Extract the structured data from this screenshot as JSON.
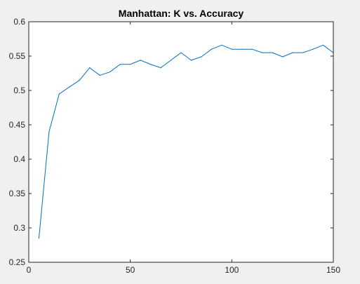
{
  "colors": {
    "figure_background": "#f0f0f0",
    "axes_background": "#ffffff",
    "axis_color": "#262626",
    "line_color": "#0072bd"
  },
  "chart_data": {
    "type": "line",
    "title": "Manhattan: K vs. Accuracy",
    "xlabel": "",
    "ylabel": "",
    "xlim": [
      0,
      150
    ],
    "ylim": [
      0.25,
      0.6
    ],
    "xticks": [
      0,
      50,
      100,
      150
    ],
    "yticks": [
      0.25,
      0.3,
      0.35,
      0.4,
      0.45,
      0.5,
      0.55,
      0.6
    ],
    "xtick_labels": [
      "0",
      "50",
      "100",
      "150"
    ],
    "ytick_labels": [
      "0.25",
      "0.3",
      "0.35",
      "0.4",
      "0.45",
      "0.5",
      "0.55",
      "0.6"
    ],
    "grid": false,
    "legend": "none",
    "series": [
      {
        "x": [
          5,
          10,
          15,
          20,
          25,
          30,
          35,
          40,
          45,
          50,
          55,
          60,
          65,
          70,
          75,
          80,
          85,
          90,
          95,
          100,
          105,
          110,
          115,
          120,
          125,
          130,
          135,
          140,
          145,
          150
        ],
        "values": [
          0.285,
          0.44,
          0.495,
          0.505,
          0.515,
          0.533,
          0.522,
          0.527,
          0.538,
          0.538,
          0.544,
          0.538,
          0.533,
          0.544,
          0.555,
          0.544,
          0.549,
          0.56,
          0.566,
          0.56,
          0.56,
          0.56,
          0.555,
          0.555,
          0.549,
          0.555,
          0.555,
          0.56,
          0.566,
          0.555
        ]
      }
    ]
  }
}
